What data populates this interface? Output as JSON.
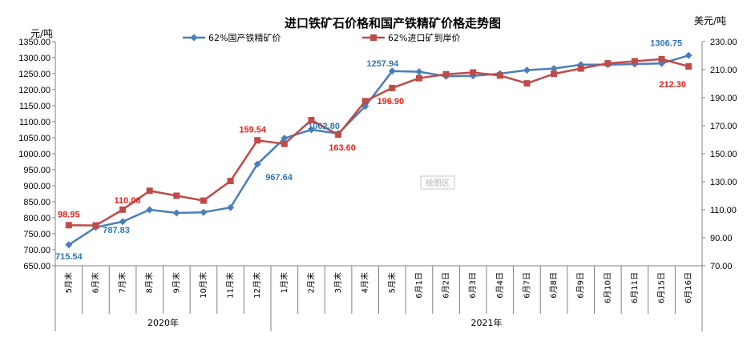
{
  "chart_data": {
    "type": "line",
    "title": "进口铁矿石价格和国产铁精矿价格走势图",
    "ylabel_left": "元/吨",
    "ylabel_right": "美元/吨",
    "plot_area_label": "绘图区",
    "ylim_left": [
      650,
      1350
    ],
    "ylim_right": [
      70,
      230
    ],
    "left_ticks": [
      "650.00",
      "700.00",
      "750.00",
      "800.00",
      "850.00",
      "900.00",
      "950.00",
      "1000.00",
      "1050.00",
      "1100.00",
      "1150.00",
      "1200.00",
      "1250.00",
      "1300.00",
      "1350.00"
    ],
    "right_ticks": [
      "70.00",
      "90.00",
      "110.00",
      "130.00",
      "150.00",
      "170.00",
      "190.00",
      "210.00",
      "230.00"
    ],
    "categories": [
      "5月末",
      "6月末",
      "7月末",
      "8月末",
      "9月末",
      "10月末",
      "11月末",
      "12月末",
      "1月末",
      "2月末",
      "3月末",
      "4月末",
      "5月末",
      "6月1日",
      "6月2日",
      "6月3日",
      "6月4日",
      "6月7日",
      "6月8日",
      "6月9日",
      "6月10日",
      "6月11日",
      "6月15日",
      "6月16日"
    ],
    "year_groups": [
      {
        "label": "2020年",
        "start": 0,
        "end": 7
      },
      {
        "label": "2021年",
        "start": 8,
        "end": 23
      }
    ],
    "legend_position": "top",
    "series": [
      {
        "name": "62%国产铁精矿价",
        "axis": "left",
        "color": "#4a7ebb",
        "marker": "diamond",
        "values": [
          715.54,
          770,
          787.83,
          825,
          815,
          817,
          832,
          967.64,
          1048,
          1075,
          1062.8,
          1148,
          1257.94,
          1256,
          1242,
          1243,
          1250,
          1261,
          1266,
          1278,
          1278,
          1280,
          1282,
          1306.75
        ],
        "labels": [
          {
            "index": 0,
            "text": "715.54"
          },
          {
            "index": 2,
            "text": "787.83"
          },
          {
            "index": 7,
            "text": "967.64"
          },
          {
            "index": 10,
            "text": "1062.80"
          },
          {
            "index": 12,
            "text": "1257.94"
          },
          {
            "index": 23,
            "text": "1306.75"
          }
        ]
      },
      {
        "name": "62%进口矿到岸价",
        "axis": "right",
        "color": "#be4b48",
        "marker": "square",
        "values": [
          98.95,
          98.8,
          110.08,
          123.5,
          120,
          116.5,
          130.5,
          159.54,
          157,
          174,
          163.6,
          187.5,
          196.9,
          203.9,
          206.7,
          208,
          205.8,
          200.2,
          207,
          210.8,
          214.5,
          216,
          217.5,
          212.3
        ],
        "labels": [
          {
            "index": 0,
            "text": "98.95"
          },
          {
            "index": 2,
            "text": "110.08"
          },
          {
            "index": 7,
            "text": "159.54"
          },
          {
            "index": 10,
            "text": "163.60"
          },
          {
            "index": 12,
            "text": "196.90"
          },
          {
            "index": 23,
            "text": "212.30"
          }
        ]
      }
    ]
  }
}
